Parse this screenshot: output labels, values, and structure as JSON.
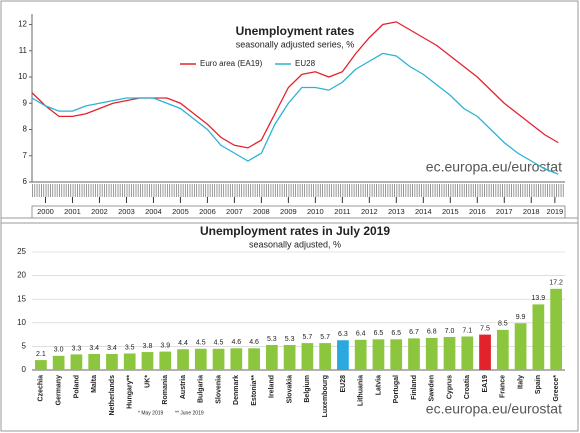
{
  "chart_data": [
    {
      "type": "line",
      "title": "Unemployment rates",
      "subtitle": "seasonally adjusted series, %",
      "x": [
        2000,
        2000.5,
        2001,
        2001.5,
        2002,
        2002.5,
        2003,
        2003.5,
        2004,
        2004.5,
        2005,
        2005.5,
        2006,
        2006.5,
        2007,
        2007.5,
        2008,
        2008.5,
        2009,
        2009.5,
        2010,
        2010.5,
        2011,
        2011.5,
        2012,
        2012.5,
        2013,
        2013.5,
        2014,
        2014.5,
        2015,
        2015.5,
        2016,
        2016.5,
        2017,
        2017.5,
        2018,
        2018.5,
        2019,
        2019.5
      ],
      "series": [
        {
          "name": "Euro area (EA19)",
          "color": "#e3232c",
          "values": [
            9.4,
            8.9,
            8.5,
            8.5,
            8.6,
            8.8,
            9.0,
            9.1,
            9.2,
            9.2,
            9.2,
            9.0,
            8.6,
            8.2,
            7.7,
            7.4,
            7.3,
            7.6,
            8.6,
            9.6,
            10.1,
            10.2,
            10.0,
            10.2,
            10.9,
            11.5,
            12.0,
            12.1,
            11.8,
            11.5,
            11.2,
            10.8,
            10.4,
            10.0,
            9.5,
            9.0,
            8.6,
            8.2,
            7.8,
            7.5
          ]
        },
        {
          "name": "EU28",
          "color": "#2bb3d6",
          "values": [
            9.2,
            8.9,
            8.7,
            8.7,
            8.9,
            9.0,
            9.1,
            9.2,
            9.2,
            9.2,
            9.0,
            8.8,
            8.4,
            8.0,
            7.4,
            7.1,
            6.8,
            7.1,
            8.2,
            9.0,
            9.6,
            9.6,
            9.5,
            9.8,
            10.3,
            10.6,
            10.9,
            10.8,
            10.4,
            10.1,
            9.7,
            9.3,
            8.8,
            8.5,
            8.0,
            7.5,
            7.1,
            6.8,
            6.5,
            6.3
          ]
        }
      ],
      "xlim": [
        2000,
        2019.75
      ],
      "xticks": [
        {
          "value": 2000.5,
          "label": "2000"
        },
        {
          "value": 2001.5,
          "label": "2001"
        },
        {
          "value": 2002.5,
          "label": "2002"
        },
        {
          "value": 2003.5,
          "label": "2003"
        },
        {
          "value": 2004.5,
          "label": "2004"
        },
        {
          "value": 2005.5,
          "label": "2005"
        },
        {
          "value": 2006.5,
          "label": "2006"
        },
        {
          "value": 2007.5,
          "label": "2007"
        },
        {
          "value": 2008.5,
          "label": "2008"
        },
        {
          "value": 2009.5,
          "label": "2009"
        },
        {
          "value": 2010.5,
          "label": "2010"
        },
        {
          "value": 2011.5,
          "label": "2011"
        },
        {
          "value": 2012.5,
          "label": "2012"
        },
        {
          "value": 2013.5,
          "label": "2013"
        },
        {
          "value": 2014.5,
          "label": "2014"
        },
        {
          "value": 2015.5,
          "label": "2015"
        },
        {
          "value": 2016.5,
          "label": "2016"
        },
        {
          "value": 2017.5,
          "label": "2017"
        },
        {
          "value": 2018.5,
          "label": "2018"
        },
        {
          "value": 2019.375,
          "label": "2019"
        }
      ],
      "ylim": [
        6,
        12.4
      ],
      "yticks": [
        6,
        7,
        8,
        9,
        10,
        11,
        12
      ],
      "grid": false,
      "source": "ec.europa.eu/eurostat"
    },
    {
      "type": "bar",
      "title": "Unemployment rates in July 2019",
      "subtitle": "seasonally adjusted, %",
      "categories": [
        "Czechia",
        "Germany",
        "Poland",
        "Malta",
        "Netherlands",
        "Hungary**",
        "UK*",
        "Romania",
        "Austria",
        "Bulgaria",
        "Slovenia",
        "Denmark",
        "Estonia**",
        "Ireland",
        "Slovakia",
        "Belgium",
        "Luxembourg",
        "EU28",
        "Lithuania",
        "Latvia",
        "Portugal",
        "Finland",
        "Sweden",
        "Cyprus",
        "Croatia",
        "EA19",
        "France",
        "Italy",
        "Spain",
        "Greece*"
      ],
      "values": [
        2.1,
        3.0,
        3.3,
        3.4,
        3.4,
        3.5,
        3.8,
        3.9,
        4.4,
        4.5,
        4.5,
        4.6,
        4.6,
        5.3,
        5.3,
        5.7,
        5.7,
        6.3,
        6.4,
        6.5,
        6.5,
        6.7,
        6.8,
        7.0,
        7.1,
        7.5,
        8.5,
        9.9,
        13.9,
        17.2
      ],
      "value_labels": [
        "2.1",
        "3.0",
        "3.3",
        "3.4",
        "3.4",
        "3.5",
        "3.8",
        "3.9",
        "4.4",
        "4.5",
        "4.5",
        "4.6",
        "4.6",
        "5.3",
        "5.3",
        "5.7",
        "5.7",
        "6.3",
        "6.4",
        "6.5",
        "6.5",
        "6.7",
        "6.8",
        "7.0",
        "7.1",
        "7.5",
        "8.5",
        "9.9",
        "13.9",
        "17.2"
      ],
      "colors": [
        "#8cc63f",
        "#8cc63f",
        "#8cc63f",
        "#8cc63f",
        "#8cc63f",
        "#8cc63f",
        "#8cc63f",
        "#8cc63f",
        "#8cc63f",
        "#8cc63f",
        "#8cc63f",
        "#8cc63f",
        "#8cc63f",
        "#8cc63f",
        "#8cc63f",
        "#8cc63f",
        "#8cc63f",
        "#2aa9e0",
        "#8cc63f",
        "#8cc63f",
        "#8cc63f",
        "#8cc63f",
        "#8cc63f",
        "#8cc63f",
        "#8cc63f",
        "#e3232c",
        "#8cc63f",
        "#8cc63f",
        "#8cc63f",
        "#8cc63f"
      ],
      "ylim": [
        0,
        25
      ],
      "yticks": [
        0,
        5,
        10,
        15,
        20,
        25
      ],
      "grid": true,
      "notes": [
        "* May 2019",
        "** June 2019"
      ],
      "source": "ec.europa.eu/eurostat"
    }
  ]
}
